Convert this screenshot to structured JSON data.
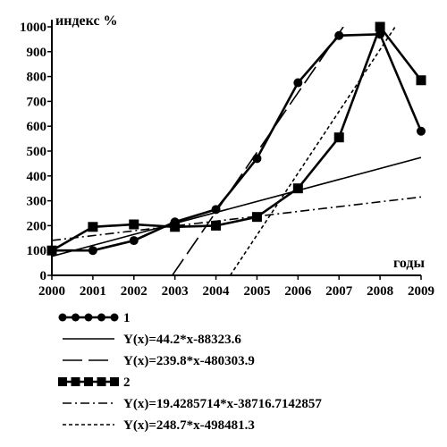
{
  "chart_data": {
    "type": "line",
    "ylabel": "индекс %",
    "xlabel": "годы",
    "xlim": [
      2000,
      2009
    ],
    "ylim": [
      0,
      1000
    ],
    "x_ticks": [
      "2000",
      "2001",
      "2002",
      "2003",
      "2004",
      "2005",
      "2006",
      "2007",
      "2008",
      "2009"
    ],
    "y_ticks": [
      "0",
      "100",
      "200",
      "300",
      "400",
      "500",
      "600",
      "700",
      "800",
      "900",
      "1000"
    ],
    "grid": false,
    "legend_placement": "bottom",
    "series": [
      {
        "name": "1",
        "kind": "data",
        "marker": "circle",
        "x": [
          2000,
          2001,
          2002,
          2003,
          2004,
          2005,
          2006,
          2007,
          2008,
          2009
        ],
        "y": [
          100,
          100,
          140,
          215,
          265,
          470,
          775,
          965,
          970,
          580
        ]
      },
      {
        "name": "Y(x)=44.2*x-88323.6",
        "kind": "trend",
        "style": "solid",
        "slope": 44.2,
        "intercept": -88323.6
      },
      {
        "name": "Y(x)=239.8*x-480303.9",
        "kind": "trend",
        "style": "longdash",
        "slope": 239.8,
        "intercept": -480303.9
      },
      {
        "name": "2",
        "kind": "data",
        "marker": "square",
        "x": [
          2000,
          2001,
          2002,
          2003,
          2004,
          2005,
          2006,
          2007,
          2008,
          2009
        ],
        "y": [
          100,
          195,
          205,
          195,
          200,
          235,
          350,
          555,
          1000,
          785
        ]
      },
      {
        "name": "Y(x)=19.4285714*x-38716.7142857",
        "kind": "trend",
        "style": "dashdot",
        "slope": 19.4285714,
        "intercept": -38716.7142857
      },
      {
        "name": "Y(x)=248.7*x-498481.3",
        "kind": "trend",
        "style": "dotted",
        "slope": 248.7,
        "intercept": -498481.3
      }
    ]
  }
}
